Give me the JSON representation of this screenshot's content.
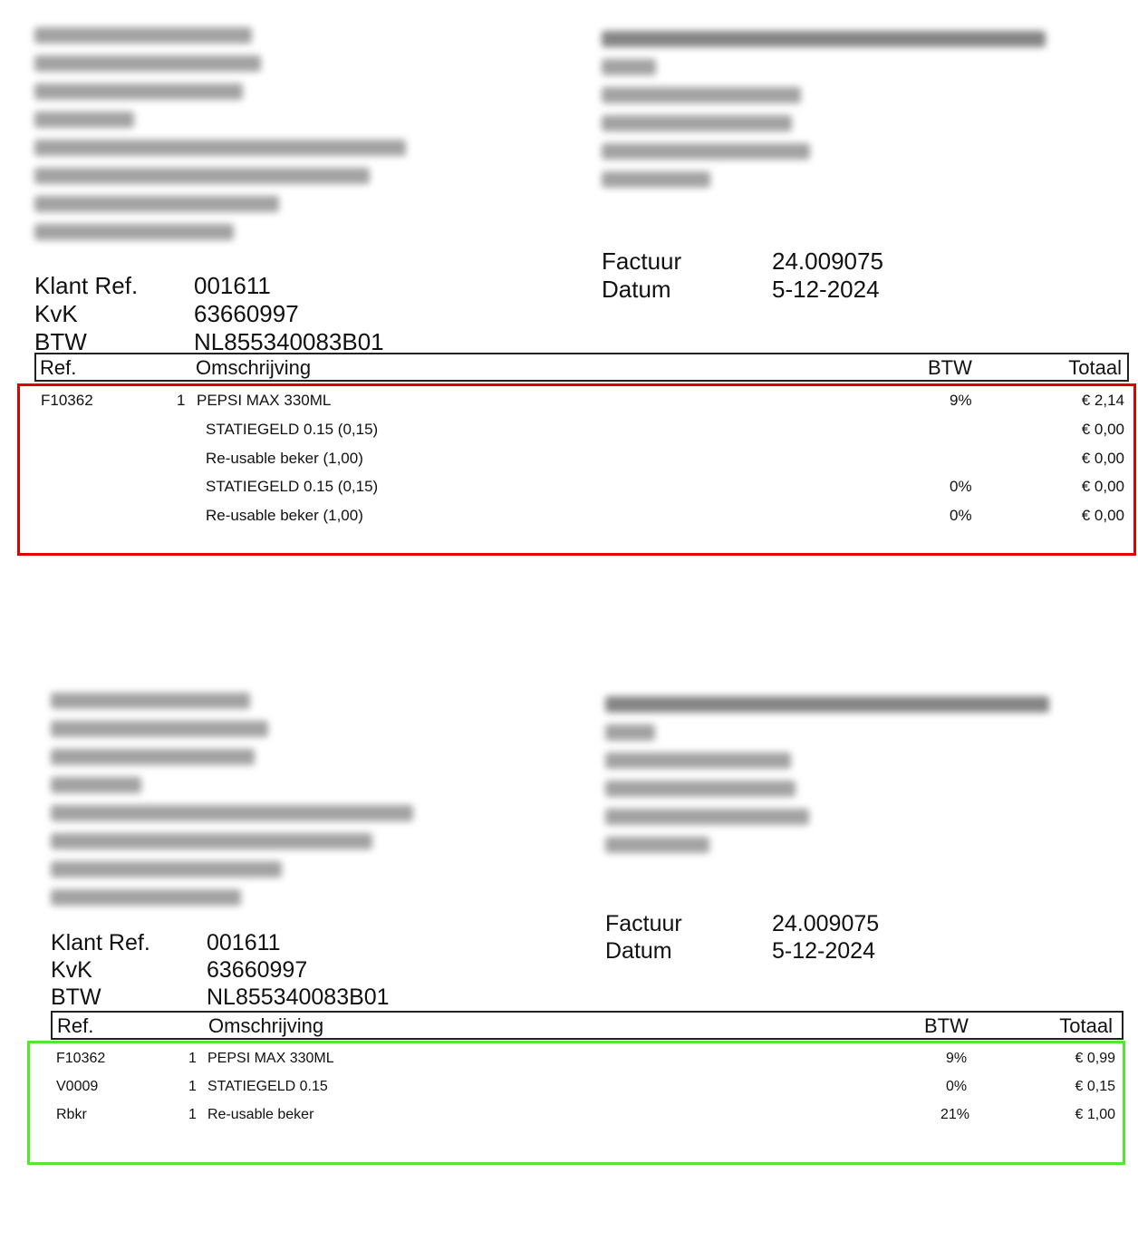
{
  "invoices": [
    {
      "factuur_label": "Factuur",
      "factuur_value": "24.009075",
      "datum_label": "Datum",
      "datum_value": "5-12-2024",
      "klant_ref_label": "Klant Ref.",
      "klant_ref_value": "001611",
      "kvk_label": "KvK",
      "kvk_value": "63660997",
      "btw_label": "BTW",
      "btw_value": "NL855340083B01",
      "columns": {
        "ref": "Ref.",
        "omschrijving": "Omschrijving",
        "btw": "BTW",
        "totaal": "Totaal"
      },
      "lines": [
        {
          "ref": "F10362",
          "qty": "1",
          "desc": "PEPSI MAX 330ML",
          "btw": "9%",
          "totaal": "€ 2,14"
        },
        {
          "ref": "",
          "qty": "",
          "desc": "STATIEGELD 0.15 (0,15)",
          "btw": "",
          "totaal": "€ 0,00"
        },
        {
          "ref": "",
          "qty": "",
          "desc": "Re-usable beker (1,00)",
          "btw": "",
          "totaal": "€ 0,00"
        },
        {
          "ref": "",
          "qty": "",
          "desc": "STATIEGELD 0.15 (0,15)",
          "btw": "0%",
          "totaal": "€ 0,00"
        },
        {
          "ref": "",
          "qty": "",
          "desc": "Re-usable beker (1,00)",
          "btw": "0%",
          "totaal": "€ 0,00"
        }
      ],
      "highlight_color": "#e10000"
    },
    {
      "factuur_label": "Factuur",
      "factuur_value": "24.009075",
      "datum_label": "Datum",
      "datum_value": "5-12-2024",
      "klant_ref_label": "Klant Ref.",
      "klant_ref_value": "001611",
      "kvk_label": "KvK",
      "kvk_value": "63660997",
      "btw_label": "BTW",
      "btw_value": "NL855340083B01",
      "columns": {
        "ref": "Ref.",
        "omschrijving": "Omschrijving",
        "btw": "BTW",
        "totaal": "Totaal"
      },
      "lines": [
        {
          "ref": "F10362",
          "qty": "1",
          "desc": "PEPSI MAX 330ML",
          "btw": "9%",
          "totaal": "€ 0,99"
        },
        {
          "ref": "V0009",
          "qty": "1",
          "desc": "STATIEGELD 0.15",
          "btw": "0%",
          "totaal": "€ 0,15"
        },
        {
          "ref": "Rbkr",
          "qty": "1",
          "desc": "Re-usable beker",
          "btw": "21%",
          "totaal": "€ 1,00"
        }
      ],
      "highlight_color": "#55e533"
    }
  ]
}
